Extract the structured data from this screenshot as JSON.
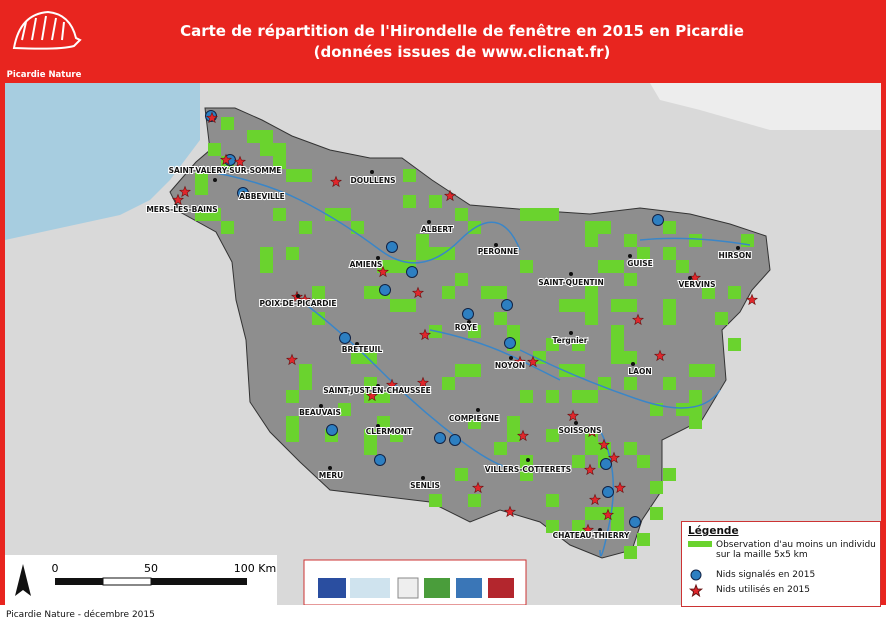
{
  "header": {
    "title_line1": "Carte de répartition de l'Hirondelle de fenêtre en 2015 en Picardie",
    "title_line2": "(données issues de www.clicnat.fr)",
    "logo": "Picardie Nature"
  },
  "towns": [
    "SAINT-VALERY-SUR-SOMME",
    "MERS-LES-BAINS",
    "ABBEVILLE",
    "DOULLENS",
    "ALBERT",
    "PERONNE",
    "HIRSON",
    "AMIENS",
    "GUISE",
    "SAINT-QUENTIN",
    "VERVINS",
    "POIX-DE-PICARDIE",
    "ROYE",
    "Tergnier",
    "BRETEUIL",
    "NOYON",
    "LAON",
    "SAINT-JUST-EN-CHAUSSEE",
    "BEAUVAIS",
    "COMPIEGNE",
    "SOISSONS",
    "CLERMONT",
    "VILLERS-COTTERETS",
    "MERU",
    "SENLIS",
    "CHATEAU-THIERRY"
  ],
  "legend": {
    "title": "Légende",
    "items": [
      "Observation d'au moins un individu sur la maille 5x5 km",
      "Nids signalés en 2015",
      "Nids utilisés en 2015"
    ]
  },
  "scale": {
    "labels": [
      "0",
      "50",
      "100 Km"
    ]
  },
  "footer": "Picardie Nature - décembre 2015"
}
